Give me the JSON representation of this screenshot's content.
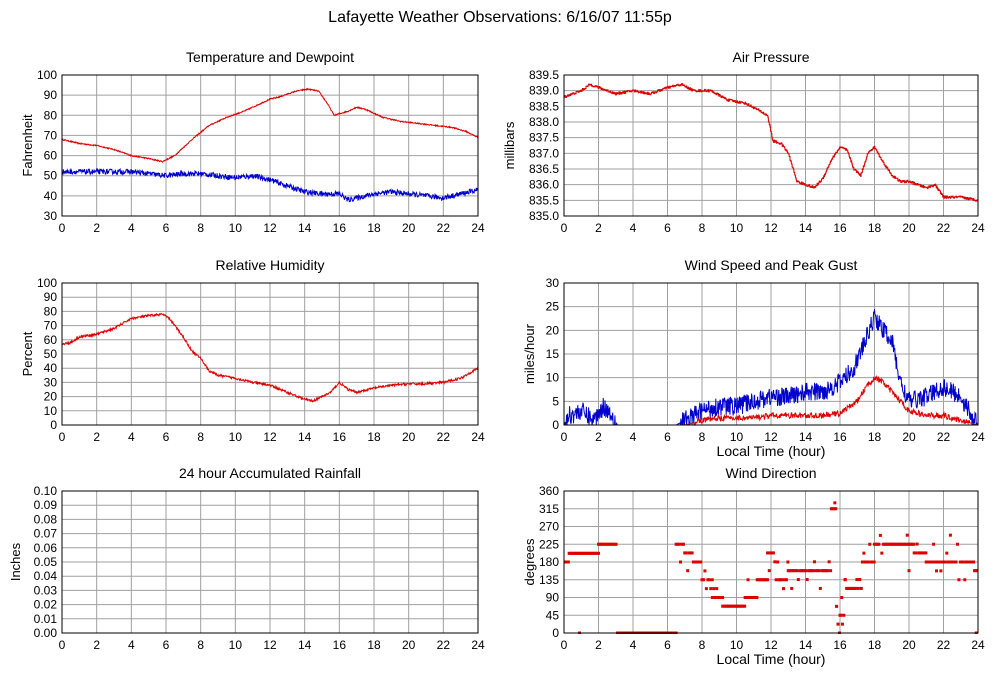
{
  "page": {
    "title": "Lafayette Weather Observations: 6/16/07 11:55p"
  },
  "colors": {
    "red": "#dd0000",
    "blue": "#0000cc",
    "grid": "#a0a0a0"
  },
  "chart_data": [
    {
      "id": "temp",
      "type": "line",
      "title": "Temperature and Dewpoint",
      "xlabel": "",
      "ylabel": "Fahrenheit",
      "xlim": [
        0,
        24
      ],
      "ylim": [
        30,
        100
      ],
      "xticks": [
        0,
        2,
        4,
        6,
        8,
        10,
        12,
        14,
        16,
        18,
        20,
        22,
        24
      ],
      "yticks": [
        "30",
        "40",
        "50",
        "60",
        "70",
        "80",
        "90",
        "100"
      ],
      "grid": true,
      "series": [
        {
          "color": "#dd0000",
          "noise": 0.3,
          "points": [
            [
              0,
              68
            ],
            [
              1,
              66
            ],
            [
              2,
              65
            ],
            [
              3,
              63
            ],
            [
              4,
              60
            ],
            [
              5,
              58.5
            ],
            [
              5.8,
              57
            ],
            [
              6.5,
              60
            ],
            [
              7.5,
              68
            ],
            [
              8.5,
              75
            ],
            [
              9.5,
              79
            ],
            [
              10.5,
              82
            ],
            [
              11.5,
              86
            ],
            [
              12,
              88
            ],
            [
              12.5,
              89
            ],
            [
              13.5,
              92
            ],
            [
              14.2,
              93
            ],
            [
              14.8,
              92
            ],
            [
              15.3,
              86
            ],
            [
              15.7,
              80
            ],
            [
              16.5,
              82
            ],
            [
              17,
              84
            ],
            [
              17.5,
              83
            ],
            [
              18.5,
              79
            ],
            [
              19.5,
              77
            ],
            [
              20.5,
              76
            ],
            [
              21.5,
              75
            ],
            [
              22.5,
              74
            ],
            [
              23.3,
              72
            ],
            [
              24,
              69
            ]
          ]
        },
        {
          "color": "#0000cc",
          "noise": 1.3,
          "points": [
            [
              0,
              52
            ],
            [
              2,
              52
            ],
            [
              4,
              52
            ],
            [
              5,
              51
            ],
            [
              6,
              50
            ],
            [
              7,
              51
            ],
            [
              8,
              51
            ],
            [
              9,
              50
            ],
            [
              10,
              49
            ],
            [
              11,
              50
            ],
            [
              12,
              48
            ],
            [
              13,
              45
            ],
            [
              14,
              42
            ],
            [
              15,
              41
            ],
            [
              16,
              41
            ],
            [
              16.5,
              38
            ],
            [
              17,
              39
            ],
            [
              18,
              41
            ],
            [
              19,
              42
            ],
            [
              20,
              41
            ],
            [
              21,
              40
            ],
            [
              22,
              39
            ],
            [
              23,
              41
            ],
            [
              24,
              43
            ]
          ]
        }
      ]
    },
    {
      "id": "pressure",
      "type": "line",
      "title": "Air Pressure",
      "xlabel": "",
      "ylabel": "millibars",
      "xlim": [
        0,
        24
      ],
      "ylim": [
        835.0,
        839.5
      ],
      "xticks": [
        0,
        2,
        4,
        6,
        8,
        10,
        12,
        14,
        16,
        18,
        20,
        22,
        24
      ],
      "yticks": [
        "835.0",
        "835.5",
        "836.0",
        "836.5",
        "837.0",
        "837.5",
        "838.0",
        "838.5",
        "839.0",
        "839.5"
      ],
      "grid": true,
      "series": [
        {
          "color": "#dd0000",
          "noise": 0.04,
          "step": true,
          "points": [
            [
              0,
              838.8
            ],
            [
              1,
              839.0
            ],
            [
              1.5,
              839.2
            ],
            [
              2,
              839.1
            ],
            [
              3,
              838.9
            ],
            [
              4,
              839.0
            ],
            [
              5,
              838.9
            ],
            [
              6,
              839.1
            ],
            [
              6.8,
              839.2
            ],
            [
              7.5,
              839.0
            ],
            [
              8.5,
              839.0
            ],
            [
              9.5,
              838.7
            ],
            [
              10.5,
              838.6
            ],
            [
              11.2,
              838.4
            ],
            [
              11.8,
              838.2
            ],
            [
              12.1,
              837.4
            ],
            [
              12.6,
              837.3
            ],
            [
              13,
              837.0
            ],
            [
              13.5,
              836.1
            ],
            [
              14,
              836.0
            ],
            [
              14.5,
              835.9
            ],
            [
              15,
              836.2
            ],
            [
              15.5,
              836.8
            ],
            [
              16,
              837.2
            ],
            [
              16.4,
              837.1
            ],
            [
              16.8,
              836.5
            ],
            [
              17.2,
              836.3
            ],
            [
              17.6,
              837.0
            ],
            [
              18,
              837.2
            ],
            [
              18.4,
              836.8
            ],
            [
              19,
              836.3
            ],
            [
              19.5,
              836.1
            ],
            [
              20,
              836.1
            ],
            [
              21,
              835.9
            ],
            [
              21.5,
              836.0
            ],
            [
              22,
              835.6
            ],
            [
              23,
              835.6
            ],
            [
              24,
              835.5
            ]
          ]
        }
      ]
    },
    {
      "id": "humidity",
      "type": "line",
      "title": "Relative Humidity",
      "xlabel": "",
      "ylabel": "Percent",
      "xlim": [
        0,
        24
      ],
      "ylim": [
        0,
        100
      ],
      "xticks": [
        0,
        2,
        4,
        6,
        8,
        10,
        12,
        14,
        16,
        18,
        20,
        22,
        24
      ],
      "yticks": [
        "0",
        "10",
        "20",
        "30",
        "40",
        "50",
        "60",
        "70",
        "80",
        "90",
        "100"
      ],
      "grid": true,
      "series": [
        {
          "color": "#dd0000",
          "noise": 0.8,
          "points": [
            [
              0,
              57
            ],
            [
              0.5,
              58
            ],
            [
              1,
              62
            ],
            [
              2,
              64
            ],
            [
              3,
              68
            ],
            [
              4,
              75
            ],
            [
              5,
              77
            ],
            [
              5.8,
              78
            ],
            [
              6.2,
              75
            ],
            [
              7,
              62
            ],
            [
              7.5,
              52
            ],
            [
              8,
              47
            ],
            [
              8.5,
              38
            ],
            [
              9,
              35
            ],
            [
              10,
              33
            ],
            [
              11,
              30
            ],
            [
              12,
              28
            ],
            [
              13,
              23
            ],
            [
              14,
              18
            ],
            [
              14.5,
              17
            ],
            [
              15,
              20
            ],
            [
              15.5,
              23
            ],
            [
              16,
              30
            ],
            [
              16.5,
              25
            ],
            [
              17,
              23
            ],
            [
              18,
              26
            ],
            [
              19,
              28
            ],
            [
              20,
              29
            ],
            [
              21,
              29
            ],
            [
              22,
              30
            ],
            [
              23,
              33
            ],
            [
              24,
              40
            ]
          ]
        }
      ]
    },
    {
      "id": "wind",
      "type": "line",
      "title": "Wind Speed and Peak Gust",
      "xlabel": "Local Time (hour)",
      "ylabel": "miles/hour",
      "xlim": [
        0,
        24
      ],
      "ylim": [
        0,
        30
      ],
      "xticks": [
        0,
        2,
        4,
        6,
        8,
        10,
        12,
        14,
        16,
        18,
        20,
        22,
        24
      ],
      "yticks": [
        "0",
        "5",
        "10",
        "15",
        "20",
        "25",
        "30"
      ],
      "grid": true,
      "series": [
        {
          "color": "#0000cc",
          "noise": 2.0,
          "clip0": true,
          "points": [
            [
              0,
              0
            ],
            [
              0.3,
              2
            ],
            [
              1,
              3
            ],
            [
              1.7,
              1
            ],
            [
              2.3,
              4
            ],
            [
              2.8,
              2
            ],
            [
              3.1,
              0
            ],
            [
              6.5,
              0
            ],
            [
              7,
              1
            ],
            [
              8,
              3
            ],
            [
              9,
              4
            ],
            [
              10,
              4
            ],
            [
              11,
              5
            ],
            [
              12,
              6
            ],
            [
              13,
              6
            ],
            [
              14,
              7
            ],
            [
              15,
              7
            ],
            [
              16,
              9
            ],
            [
              16.8,
              12
            ],
            [
              17.5,
              18
            ],
            [
              18,
              23
            ],
            [
              18.5,
              20
            ],
            [
              19,
              18
            ],
            [
              19.5,
              9
            ],
            [
              20,
              5
            ],
            [
              21,
              6
            ],
            [
              22,
              8
            ],
            [
              23,
              6
            ],
            [
              23.6,
              2
            ],
            [
              24,
              0
            ]
          ]
        },
        {
          "color": "#dd0000",
          "noise": 0.6,
          "clip0": true,
          "points": [
            [
              0,
              0
            ],
            [
              7,
              0
            ],
            [
              8,
              1
            ],
            [
              9,
              1.5
            ],
            [
              10,
              1.5
            ],
            [
              11,
              1.5
            ],
            [
              12,
              2
            ],
            [
              13,
              2
            ],
            [
              14,
              2
            ],
            [
              15,
              2
            ],
            [
              16,
              2.5
            ],
            [
              17,
              5
            ],
            [
              17.5,
              8
            ],
            [
              18,
              10
            ],
            [
              18.5,
              9
            ],
            [
              19,
              7
            ],
            [
              20,
              3
            ],
            [
              21,
              2
            ],
            [
              22,
              2
            ],
            [
              23,
              1
            ],
            [
              24,
              0
            ]
          ]
        }
      ]
    },
    {
      "id": "rain",
      "type": "line",
      "title": "24 hour Accumulated Rainfall",
      "xlabel": "",
      "ylabel": "Inches",
      "xlim": [
        0,
        24
      ],
      "ylim": [
        0,
        0.1
      ],
      "xticks": [
        0,
        2,
        4,
        6,
        8,
        10,
        12,
        14,
        16,
        18,
        20,
        22,
        24
      ],
      "yticks": [
        "0.00",
        "0.01",
        "0.02",
        "0.03",
        "0.04",
        "0.05",
        "0.06",
        "0.07",
        "0.08",
        "0.09",
        "0.10"
      ],
      "grid": true,
      "series": [
        {
          "color": "#dd0000",
          "noise": 0,
          "points": [
            [
              0,
              0
            ],
            [
              24,
              0
            ]
          ]
        }
      ]
    },
    {
      "id": "direction",
      "type": "scatter",
      "title": "Wind Direction",
      "xlabel": "Local Time (hour)",
      "ylabel": "degrees",
      "xlim": [
        0,
        24
      ],
      "ylim": [
        0,
        360
      ],
      "xticks": [
        0,
        2,
        4,
        6,
        8,
        10,
        12,
        14,
        16,
        18,
        20,
        22,
        24
      ],
      "yticks": [
        "0",
        "45",
        "90",
        "135",
        "180",
        "225",
        "270",
        "315",
        "360"
      ],
      "grid": true,
      "series": [
        {
          "color": "#dd0000",
          "runs": [
            [
              0,
              0.3,
              180,
              0.1
            ],
            [
              0.3,
              2.0,
              202,
              0.1
            ],
            [
              2.0,
              3.1,
              225,
              0.1
            ],
            [
              3.1,
              6.5,
              0,
              0.1
            ],
            [
              6.5,
              7.0,
              225,
              0.15
            ],
            [
              7.0,
              7.5,
              203,
              0.15
            ],
            [
              7.5,
              8.0,
              180,
              0.15
            ],
            [
              8.0,
              8.6,
              135,
              0.2
            ],
            [
              8.6,
              9.2,
              90,
              0.2
            ],
            [
              9.2,
              10.5,
              68,
              0.12
            ],
            [
              10.5,
              11.2,
              90,
              0.25
            ],
            [
              11.2,
              11.8,
              135,
              0.25
            ],
            [
              11.8,
              12.3,
              203,
              0.3
            ],
            [
              12.3,
              13.0,
              135,
              0.3
            ],
            [
              13.0,
              13.5,
              158,
              0.3
            ],
            [
              13.5,
              15.5,
              158,
              0.2
            ],
            [
              15.5,
              15.8,
              315,
              0.1
            ],
            [
              15.8,
              16.3,
              45,
              0.2
            ],
            [
              16.3,
              17.3,
              113,
              0.25
            ],
            [
              17.3,
              18.0,
              180,
              0.25
            ],
            [
              18.0,
              19.0,
              225,
              0.2
            ],
            [
              19.0,
              20.3,
              225,
              0.15
            ],
            [
              20.3,
              21.0,
              203,
              0.2
            ],
            [
              21.0,
              22.3,
              180,
              0.15
            ],
            [
              22.3,
              23.8,
              180,
              0.25
            ],
            [
              23.8,
              24,
              158,
              0.1
            ]
          ],
          "extra": [
            [
              0.9,
              0
            ],
            [
              10.7,
              380
            ],
            [
              15.7,
              330
            ],
            [
              16.0,
              45
            ],
            [
              19.9,
              248
            ],
            [
              20.0,
              158
            ],
            [
              22.4,
              248
            ],
            [
              11.9,
              158
            ],
            [
              13.2,
              113
            ],
            [
              16.1,
              90
            ],
            [
              16.3,
              135
            ],
            [
              23.9,
              0
            ]
          ]
        }
      ]
    }
  ]
}
